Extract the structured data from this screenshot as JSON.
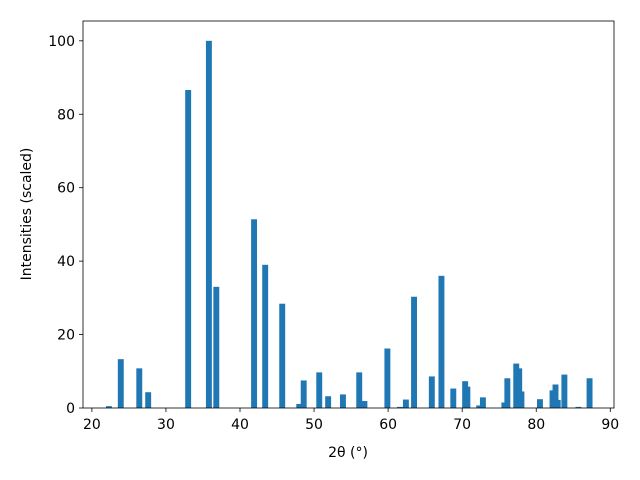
{
  "chart_data": {
    "type": "bar",
    "xlabel": "2θ (°)",
    "ylabel": "Intensities (scaled)",
    "color": "#1f77b4",
    "x": [
      22.3,
      23.9,
      26.4,
      27.6,
      33.0,
      35.8,
      36.8,
      41.9,
      43.4,
      45.7,
      48.0,
      48.6,
      50.7,
      51.9,
      53.9,
      56.1,
      56.8,
      59.9,
      61.6,
      62.4,
      63.5,
      65.9,
      67.2,
      68.8,
      70.4,
      70.7,
      72.3,
      72.8,
      75.7,
      76.1,
      77.3,
      77.7,
      78.0,
      80.5,
      82.2,
      82.6,
      82.9,
      83.8,
      85.7,
      87.2
    ],
    "values": [
      0.5,
      13.3,
      10.8,
      4.3,
      86.6,
      100,
      33,
      51.4,
      39,
      28.4,
      1.1,
      7.5,
      9.7,
      3.2,
      3.7,
      9.7,
      1.9,
      16.2,
      0.3,
      2.3,
      30.3,
      8.6,
      36,
      5.3,
      7.3,
      5.8,
      0.7,
      2.9,
      1.5,
      8.1,
      12.1,
      10.8,
      4.5,
      2.4,
      4.8,
      6.4,
      2.2,
      9.1,
      0.3,
      8.1
    ],
    "xlim": [
      18.8,
      90.5
    ],
    "ylim": [
      0,
      105.4
    ],
    "xticks": [
      20,
      30,
      40,
      50,
      60,
      70,
      80,
      90
    ],
    "yticks": [
      0,
      20,
      40,
      60,
      80,
      100
    ]
  }
}
